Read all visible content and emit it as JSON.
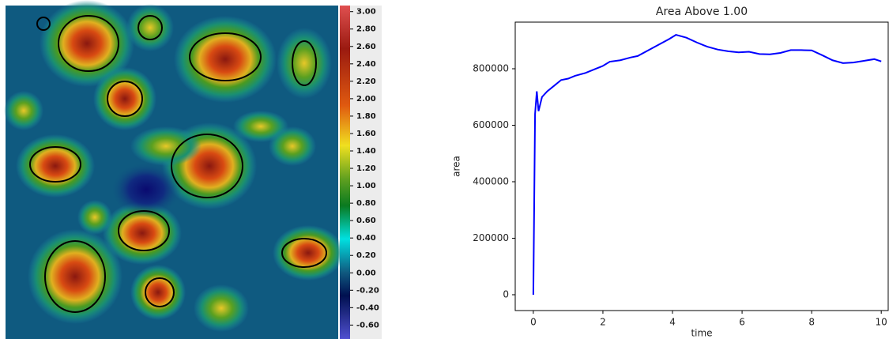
{
  "colorbar": {
    "range": [
      -0.76,
      3.07
    ],
    "ticks": [
      {
        "value": 3.0,
        "label": "3.00"
      },
      {
        "value": 2.8,
        "label": "2.80"
      },
      {
        "value": 2.6,
        "label": "2.60"
      },
      {
        "value": 2.4,
        "label": "2.40"
      },
      {
        "value": 2.2,
        "label": "2.20"
      },
      {
        "value": 2.0,
        "label": "2.00"
      },
      {
        "value": 1.8,
        "label": "1.80"
      },
      {
        "value": 1.6,
        "label": "1.60"
      },
      {
        "value": 1.4,
        "label": "1.40"
      },
      {
        "value": 1.2,
        "label": "1.20"
      },
      {
        "value": 1.0,
        "label": "1.00"
      },
      {
        "value": 0.8,
        "label": "0.80"
      },
      {
        "value": 0.6,
        "label": "0.60"
      },
      {
        "value": 0.4,
        "label": "0.40"
      },
      {
        "value": 0.2,
        "label": "0.20"
      },
      {
        "value": 0.0,
        "label": "0.00"
      },
      {
        "value": -0.2,
        "label": "-0.20"
      },
      {
        "value": -0.4,
        "label": "-0.40"
      },
      {
        "value": -0.6,
        "label": "-0.60"
      }
    ]
  },
  "chart_data": {
    "type": "line",
    "title": "Area Above 1.00",
    "xlabel": "time",
    "ylabel": "area",
    "x": [
      0,
      0.05,
      0.1,
      0.15,
      0.25,
      0.4,
      0.6,
      0.8,
      1,
      1.2,
      1.5,
      1.8,
      2,
      2.2,
      2.5,
      2.8,
      3,
      3.3,
      3.6,
      3.9,
      4.1,
      4.4,
      4.7,
      5,
      5.3,
      5.6,
      5.9,
      6.2,
      6.5,
      6.8,
      7.1,
      7.4,
      7.7,
      8,
      8.3,
      8.6,
      8.9,
      9.2,
      9.5,
      9.8,
      10
    ],
    "y": [
      0,
      640000,
      720000,
      650000,
      700000,
      720000,
      740000,
      760000,
      765000,
      775000,
      785000,
      800000,
      810000,
      825000,
      830000,
      840000,
      845000,
      865000,
      885000,
      905000,
      920000,
      910000,
      893000,
      878000,
      868000,
      862000,
      858000,
      860000,
      852000,
      851000,
      856000,
      866000,
      866000,
      865000,
      848000,
      830000,
      820000,
      822000,
      828000,
      834000,
      826000
    ],
    "color": "#0000ff",
    "xlim": [
      -0.52,
      10.2
    ],
    "ylim": [
      -56000,
      965000
    ],
    "xticks": [
      0,
      2,
      4,
      6,
      8,
      10
    ],
    "yticks": [
      0,
      200000,
      400000,
      600000,
      800000
    ]
  }
}
